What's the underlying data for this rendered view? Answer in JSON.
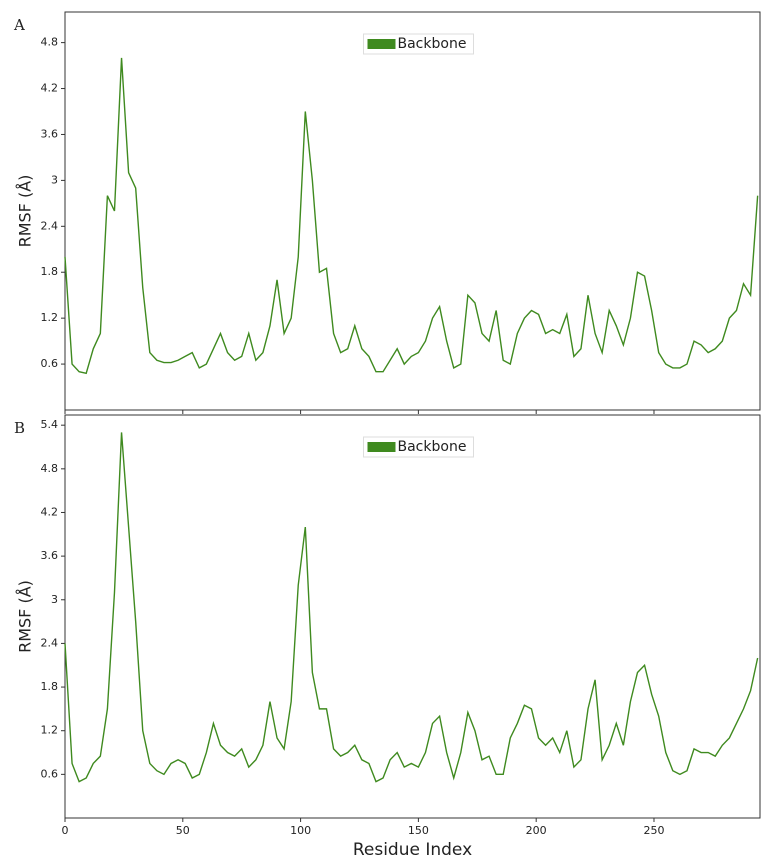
{
  "chart_data": [
    {
      "type": "line",
      "panel_label": "A",
      "ylabel": "RMSF ($\\AA$)",
      "legend": "upper center",
      "xlim": [
        0,
        295
      ],
      "ylim": [
        0,
        5.2
      ],
      "yticks": [
        0.6,
        1.2,
        1.8,
        2.4,
        3.0,
        3.6,
        4.2,
        4.8
      ],
      "x": [
        0,
        3,
        6,
        9,
        12,
        15,
        18,
        21,
        24,
        27,
        30,
        33,
        36,
        39,
        42,
        45,
        48,
        51,
        54,
        57,
        60,
        63,
        66,
        69,
        72,
        75,
        78,
        81,
        84,
        87,
        90,
        93,
        96,
        99,
        102,
        105,
        108,
        111,
        114,
        117,
        120,
        123,
        126,
        129,
        132,
        135,
        138,
        141,
        144,
        147,
        150,
        153,
        156,
        159,
        162,
        165,
        168,
        171,
        174,
        177,
        180,
        183,
        186,
        189,
        192,
        195,
        198,
        201,
        204,
        207,
        210,
        213,
        216,
        219,
        222,
        225,
        228,
        231,
        234,
        237,
        240,
        243,
        246,
        249,
        252,
        255,
        258,
        261,
        264,
        267,
        270,
        273,
        276,
        279,
        282,
        285,
        288,
        291,
        294
      ],
      "series": [
        {
          "name": "Backbone",
          "color": "#3f8a1f",
          "values": [
            2.0,
            0.6,
            0.5,
            0.48,
            0.8,
            1.0,
            2.8,
            2.6,
            4.6,
            3.1,
            2.9,
            1.6,
            0.75,
            0.65,
            0.62,
            0.62,
            0.65,
            0.7,
            0.75,
            0.55,
            0.6,
            0.8,
            1.0,
            0.75,
            0.65,
            0.7,
            1.0,
            0.65,
            0.75,
            1.1,
            1.7,
            1.0,
            1.2,
            2.0,
            3.9,
            3.0,
            1.8,
            1.85,
            1.0,
            0.75,
            0.8,
            1.1,
            0.8,
            0.7,
            0.5,
            0.5,
            0.65,
            0.8,
            0.6,
            0.7,
            0.75,
            0.9,
            1.2,
            1.35,
            0.9,
            0.55,
            0.6,
            1.5,
            1.4,
            1.0,
            0.9,
            1.3,
            0.65,
            0.6,
            1.0,
            1.2,
            1.3,
            1.25,
            1.0,
            1.05,
            1.0,
            1.25,
            0.7,
            0.8,
            1.5,
            1.0,
            0.75,
            1.3,
            1.1,
            0.85,
            1.2,
            1.8,
            1.75,
            1.3,
            0.75,
            0.6,
            0.55,
            0.55,
            0.6,
            0.9,
            0.85,
            0.75,
            0.8,
            0.9,
            1.2,
            1.3,
            1.65,
            1.5,
            2.8
          ]
        }
      ]
    },
    {
      "type": "line",
      "panel_label": "B",
      "ylabel": "RMSF ($\\AA$)",
      "xlabel": "Residue Index",
      "legend": "upper center",
      "xlim": [
        0,
        295
      ],
      "ylim": [
        0,
        5.54
      ],
      "yticks": [
        0.6,
        1.2,
        1.8,
        2.4,
        3.0,
        3.6,
        4.2,
        4.8,
        5.4
      ],
      "xticks": [
        0,
        50,
        100,
        150,
        200,
        250
      ],
      "x": [
        0,
        3,
        6,
        9,
        12,
        15,
        18,
        21,
        24,
        27,
        30,
        33,
        36,
        39,
        42,
        45,
        48,
        51,
        54,
        57,
        60,
        63,
        66,
        69,
        72,
        75,
        78,
        81,
        84,
        87,
        90,
        93,
        96,
        99,
        102,
        105,
        108,
        111,
        114,
        117,
        120,
        123,
        126,
        129,
        132,
        135,
        138,
        141,
        144,
        147,
        150,
        153,
        156,
        159,
        162,
        165,
        168,
        171,
        174,
        177,
        180,
        183,
        186,
        189,
        192,
        195,
        198,
        201,
        204,
        207,
        210,
        213,
        216,
        219,
        222,
        225,
        228,
        231,
        234,
        237,
        240,
        243,
        246,
        249,
        252,
        255,
        258,
        261,
        264,
        267,
        270,
        273,
        276,
        279,
        282,
        285,
        288,
        291,
        294
      ],
      "series": [
        {
          "name": "Backbone",
          "color": "#3f8a1f",
          "values": [
            2.4,
            0.75,
            0.5,
            0.55,
            0.75,
            0.85,
            1.5,
            3.1,
            5.3,
            4.0,
            2.7,
            1.2,
            0.75,
            0.65,
            0.6,
            0.75,
            0.8,
            0.75,
            0.55,
            0.6,
            0.9,
            1.3,
            1.0,
            0.9,
            0.85,
            0.95,
            0.7,
            0.8,
            1.0,
            1.6,
            1.1,
            0.95,
            1.6,
            3.2,
            4.0,
            2.0,
            1.5,
            1.5,
            0.95,
            0.85,
            0.9,
            1.0,
            0.8,
            0.75,
            0.5,
            0.55,
            0.8,
            0.9,
            0.7,
            0.75,
            0.7,
            0.9,
            1.3,
            1.4,
            0.9,
            0.55,
            0.9,
            1.45,
            1.2,
            0.8,
            0.85,
            0.6,
            0.6,
            1.1,
            1.3,
            1.55,
            1.5,
            1.1,
            1.0,
            1.1,
            0.9,
            1.2,
            0.7,
            0.8,
            1.5,
            1.9,
            0.8,
            1.0,
            1.3,
            1.0,
            1.6,
            2.0,
            2.1,
            1.7,
            1.4,
            0.9,
            0.65,
            0.6,
            0.65,
            0.95,
            0.9,
            0.9,
            0.85,
            1.0,
            1.1,
            1.3,
            1.5,
            1.75,
            2.2
          ]
        }
      ]
    }
  ]
}
